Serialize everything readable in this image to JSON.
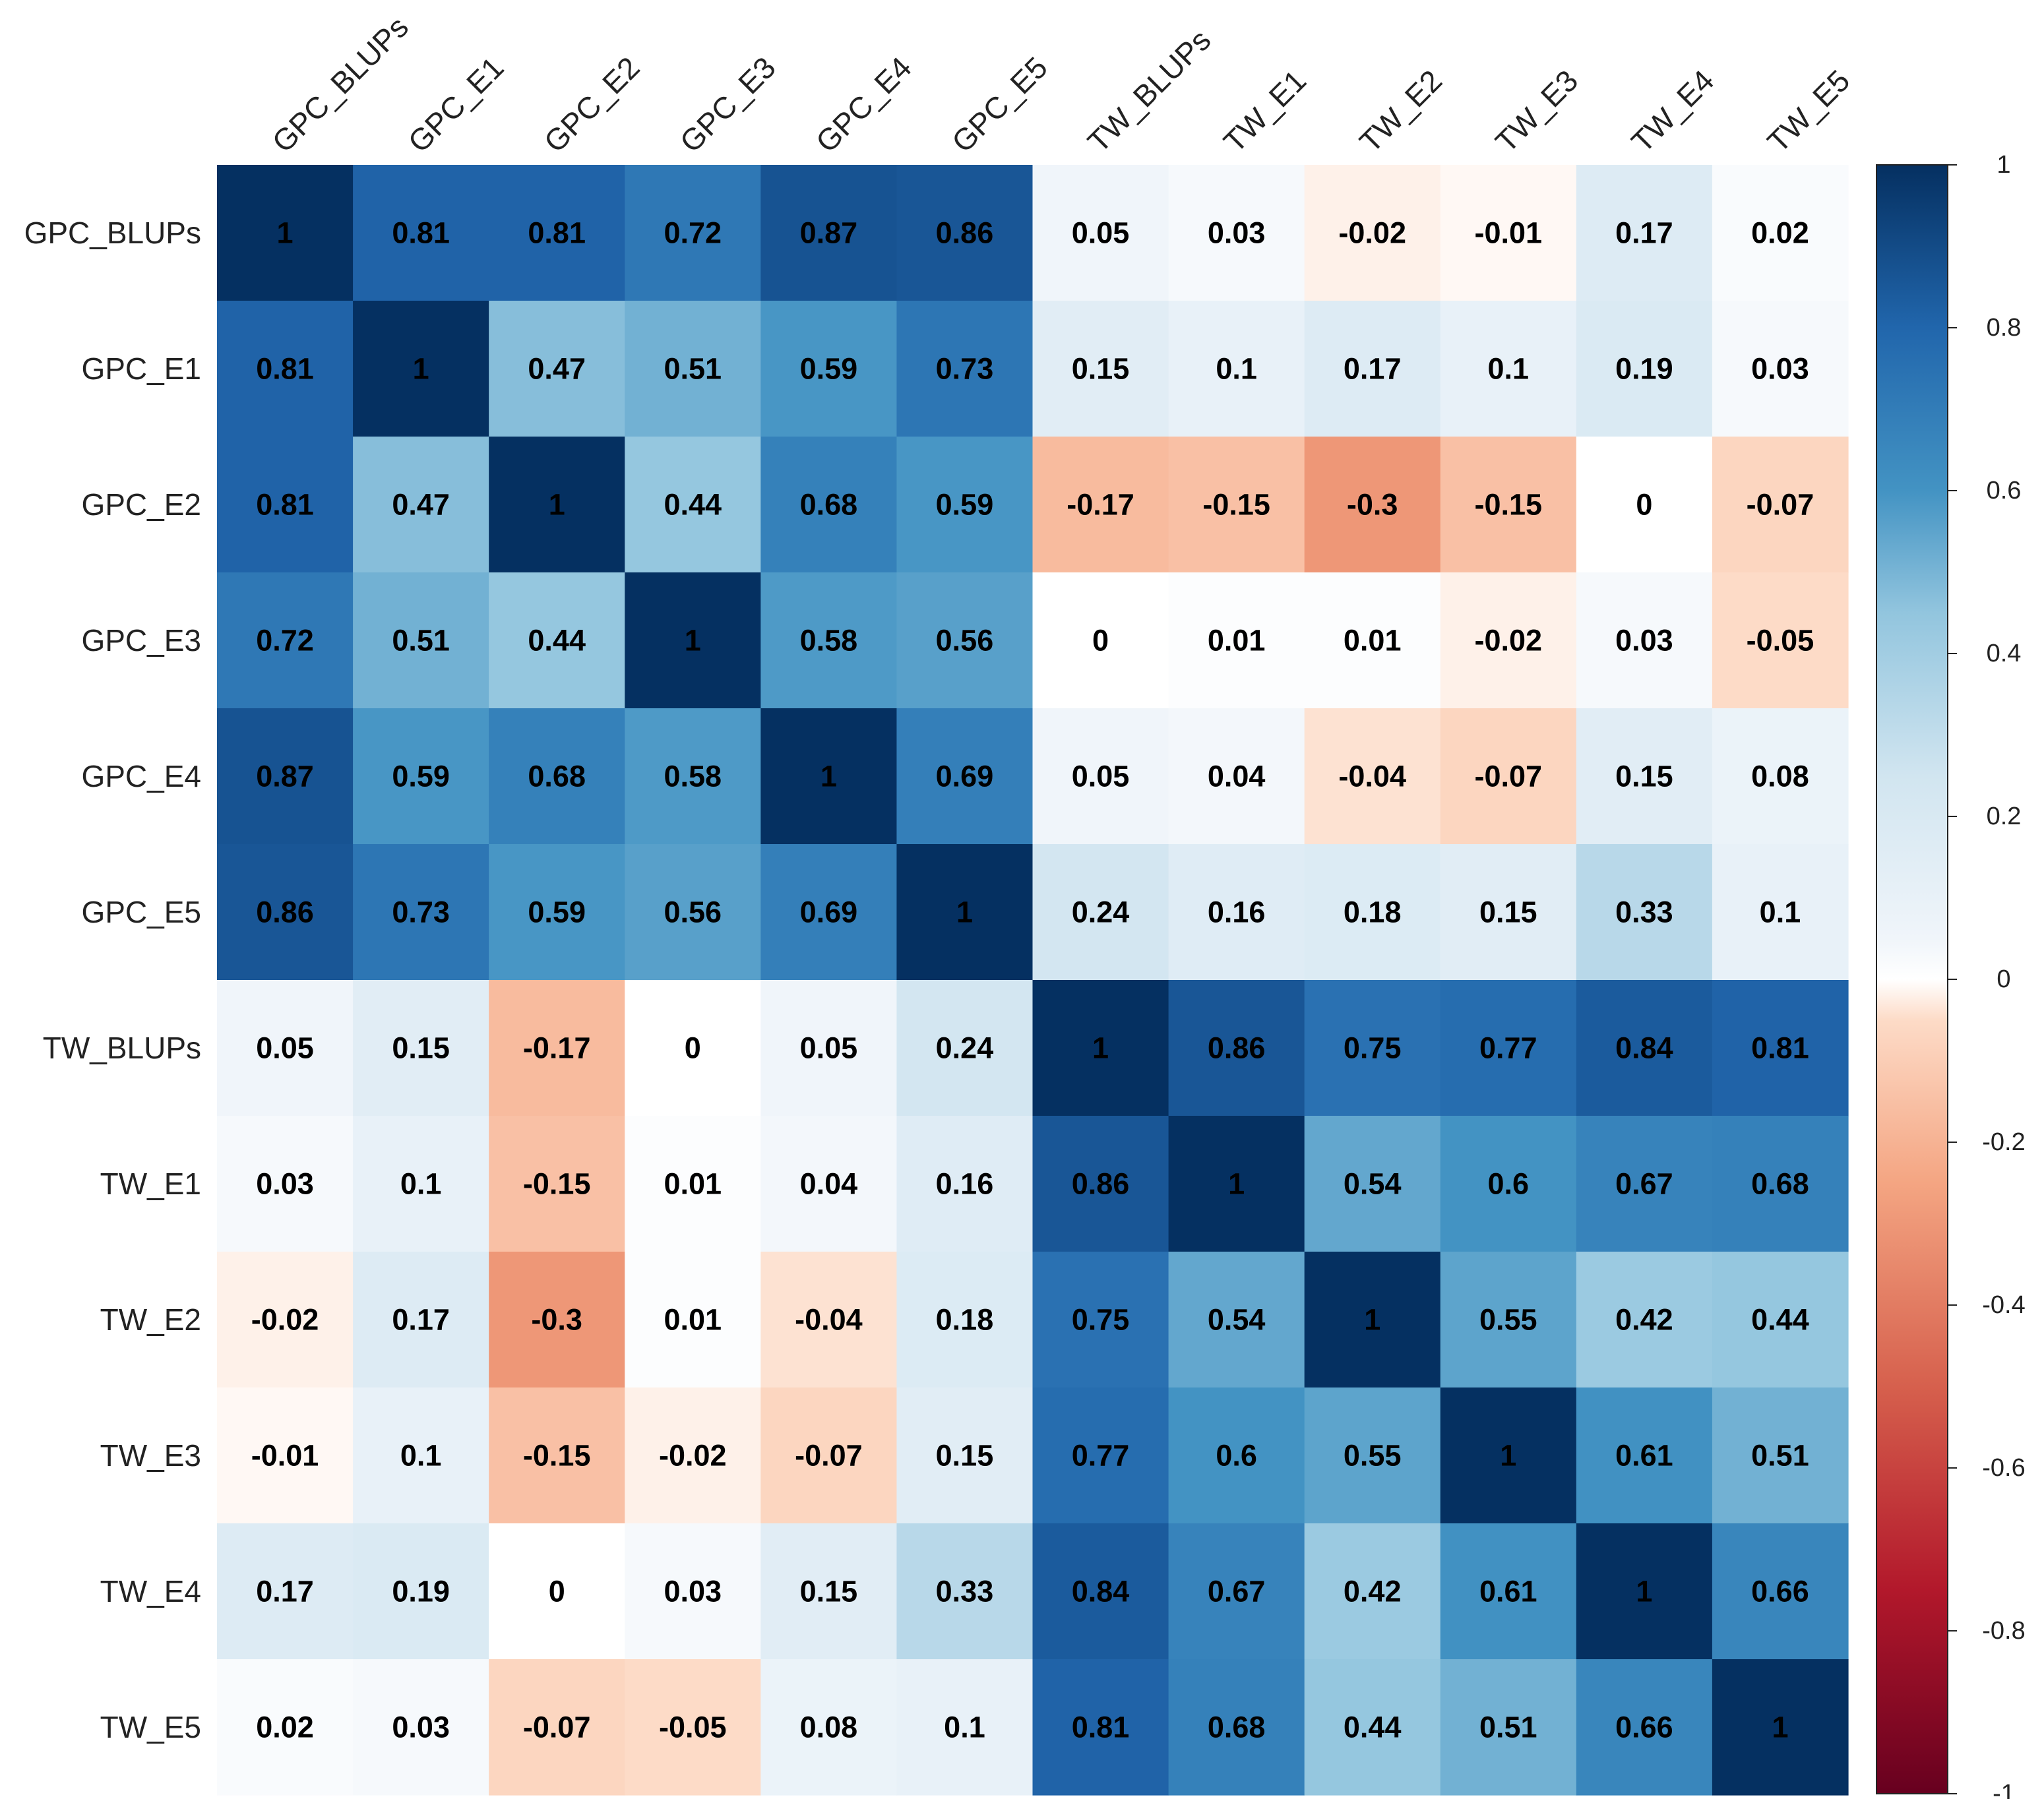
{
  "chart_data": {
    "type": "heatmap",
    "title": "",
    "labels": [
      "GPC_BLUPs",
      "GPC_E1",
      "GPC_E2",
      "GPC_E3",
      "GPC_E4",
      "GPC_E5",
      "TW_BLUPs",
      "TW_E1",
      "TW_E2",
      "TW_E3",
      "TW_E4",
      "TW_E5"
    ],
    "values": [
      [
        1,
        0.81,
        0.81,
        0.72,
        0.87,
        0.86,
        0.05,
        0.03,
        -0.02,
        -0.01,
        0.17,
        0.02
      ],
      [
        0.81,
        1,
        0.47,
        0.51,
        0.59,
        0.73,
        0.15,
        0.1,
        0.17,
        0.1,
        0.19,
        0.03
      ],
      [
        0.81,
        0.47,
        1,
        0.44,
        0.68,
        0.59,
        -0.17,
        -0.15,
        -0.3,
        -0.15,
        0,
        -0.07
      ],
      [
        0.72,
        0.51,
        0.44,
        1,
        0.58,
        0.56,
        0,
        0.01,
        0.01,
        -0.02,
        0.03,
        -0.05
      ],
      [
        0.87,
        0.59,
        0.68,
        0.58,
        1,
        0.69,
        0.05,
        0.04,
        -0.04,
        -0.07,
        0.15,
        0.08
      ],
      [
        0.86,
        0.73,
        0.59,
        0.56,
        0.69,
        1,
        0.24,
        0.16,
        0.18,
        0.15,
        0.33,
        0.1
      ],
      [
        0.05,
        0.15,
        -0.17,
        0,
        0.05,
        0.24,
        1,
        0.86,
        0.75,
        0.77,
        0.84,
        0.81
      ],
      [
        0.03,
        0.1,
        -0.15,
        0.01,
        0.04,
        0.16,
        0.86,
        1,
        0.54,
        0.6,
        0.67,
        0.68
      ],
      [
        -0.02,
        0.17,
        -0.3,
        0.01,
        -0.04,
        0.18,
        0.75,
        0.54,
        1,
        0.55,
        0.42,
        0.44
      ],
      [
        -0.01,
        0.1,
        -0.15,
        -0.02,
        -0.07,
        0.15,
        0.77,
        0.6,
        0.55,
        1,
        0.61,
        0.51
      ],
      [
        0.17,
        0.19,
        0,
        0.03,
        0.15,
        0.33,
        0.84,
        0.67,
        0.42,
        0.61,
        1,
        0.66
      ],
      [
        0.02,
        0.03,
        -0.07,
        -0.05,
        0.08,
        0.1,
        0.81,
        0.68,
        0.44,
        0.51,
        0.66,
        1
      ]
    ],
    "color_scale": {
      "min": -1,
      "max": 1,
      "ticks": [
        1,
        0.8,
        0.6,
        0.4,
        0.2,
        0,
        -0.2,
        -0.4,
        -0.6,
        -0.8,
        -1
      ],
      "tick_labels": [
        "1",
        "0.8",
        "0.6",
        "0.4",
        "0.2",
        "0",
        "-0.2",
        "-0.4",
        "-0.6",
        "-0.8",
        "-1"
      ],
      "stops": [
        {
          "value": -1,
          "color": "#67001f"
        },
        {
          "value": -0.75,
          "color": "#b2182b"
        },
        {
          "value": -0.5,
          "color": "#d6604d"
        },
        {
          "value": -0.25,
          "color": "#f4a582"
        },
        {
          "value": -0.05,
          "color": "#fddbc7"
        },
        {
          "value": 0,
          "color": "#ffffff"
        },
        {
          "value": 0.05,
          "color": "#f0f5fa"
        },
        {
          "value": 0.25,
          "color": "#d1e5f0"
        },
        {
          "value": 0.45,
          "color": "#92c5de"
        },
        {
          "value": 0.6,
          "color": "#4393c3"
        },
        {
          "value": 0.8,
          "color": "#2166ac"
        },
        {
          "value": 1,
          "color": "#053061"
        }
      ]
    },
    "legend": "right"
  },
  "colors": {
    "text_dark": "#111111",
    "text_light": "#000000",
    "axis": "#222222",
    "background": "#ffffff"
  }
}
